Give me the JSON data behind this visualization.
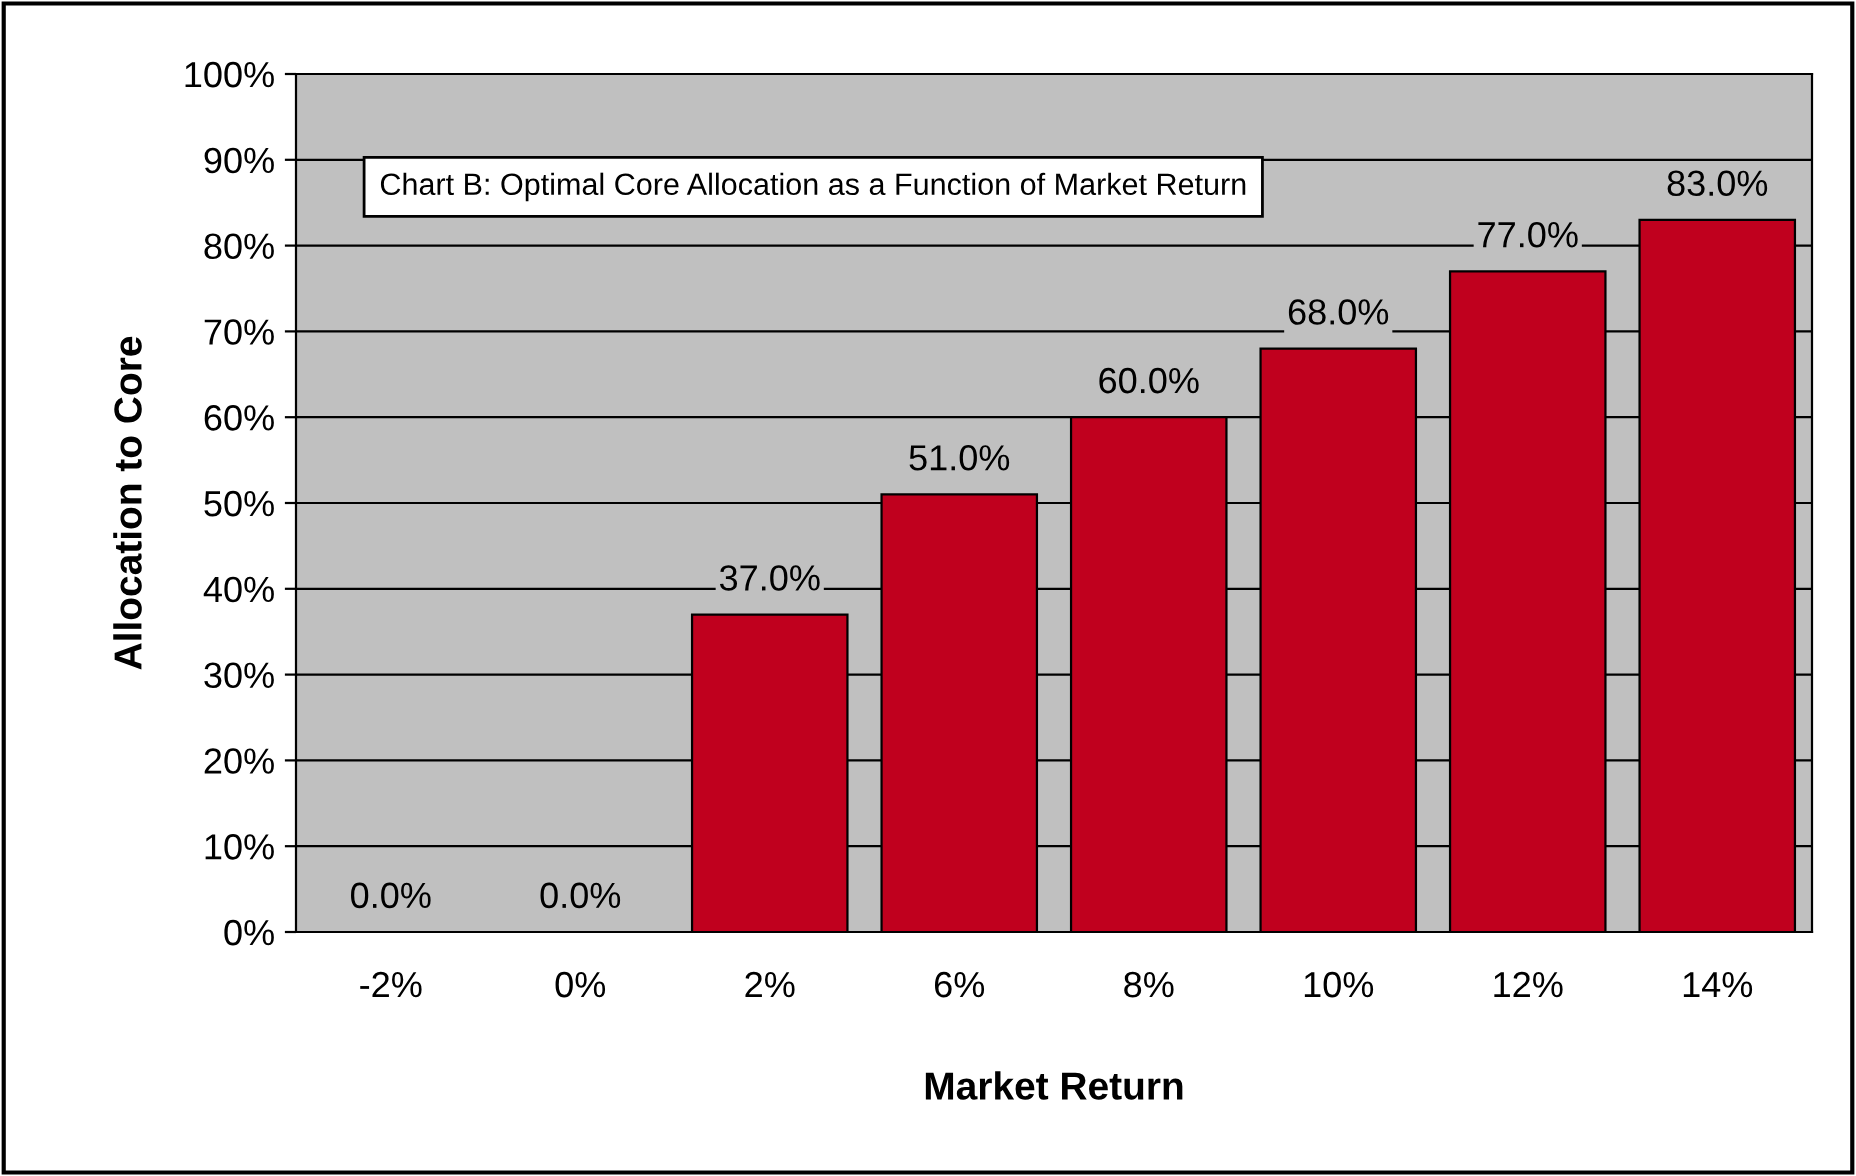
{
  "chart_data": {
    "type": "bar",
    "title": "Chart B: Optimal Core Allocation as a Function of Market Return",
    "xlabel": "Market Return",
    "ylabel": "Allocation to Core",
    "categories": [
      "-2%",
      "0%",
      "2%",
      "6%",
      "8%",
      "10%",
      "12%",
      "14%"
    ],
    "values": [
      0,
      0,
      37,
      51,
      60,
      68,
      77,
      83
    ],
    "value_labels": [
      "0.0%",
      "0.0%",
      "37.0%",
      "51.0%",
      "60.0%",
      "68.0%",
      "77.0%",
      "83.0%"
    ],
    "color": "#c0001e",
    "ylim": [
      0,
      100
    ],
    "yticks": [
      {
        "value": 0,
        "label": "0%"
      },
      {
        "value": 10,
        "label": "10%"
      },
      {
        "value": 20,
        "label": "20%"
      },
      {
        "value": 30,
        "label": "30%"
      },
      {
        "value": 40,
        "label": "40%"
      },
      {
        "value": 50,
        "label": "50%"
      },
      {
        "value": 60,
        "label": "60%"
      },
      {
        "value": 70,
        "label": "70%"
      },
      {
        "value": 80,
        "label": "80%"
      },
      {
        "value": 90,
        "label": "90%"
      },
      {
        "value": 100,
        "label": "100%"
      }
    ],
    "grid": "y",
    "legend": false
  }
}
